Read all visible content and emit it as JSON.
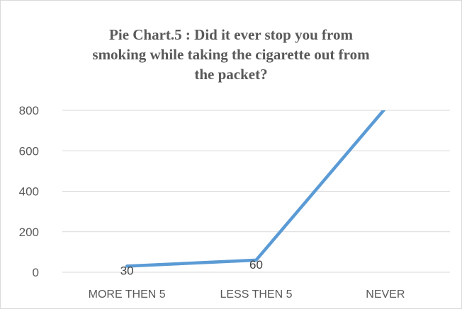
{
  "chart_data": {
    "type": "line",
    "title_lines": [
      "Pie Chart.5 : Did it ever stop you from",
      "smoking while taking the cigarette out from",
      "the packet?"
    ],
    "categories": [
      "MORE THEN 5",
      "LESS THEN 5",
      "NEVER"
    ],
    "series": [
      {
        "values": [
          30,
          60,
          810
        ],
        "color": "#5b9bd5"
      }
    ],
    "data_labels": [
      "30",
      "60",
      ""
    ],
    "yticks": [
      0,
      200,
      400,
      600,
      800
    ],
    "ylim": [
      0,
      800
    ],
    "grid": true,
    "legend": "none",
    "colors": {
      "gridline": "#d9d9d9",
      "text": "#595959",
      "data_label": "#404040"
    }
  }
}
